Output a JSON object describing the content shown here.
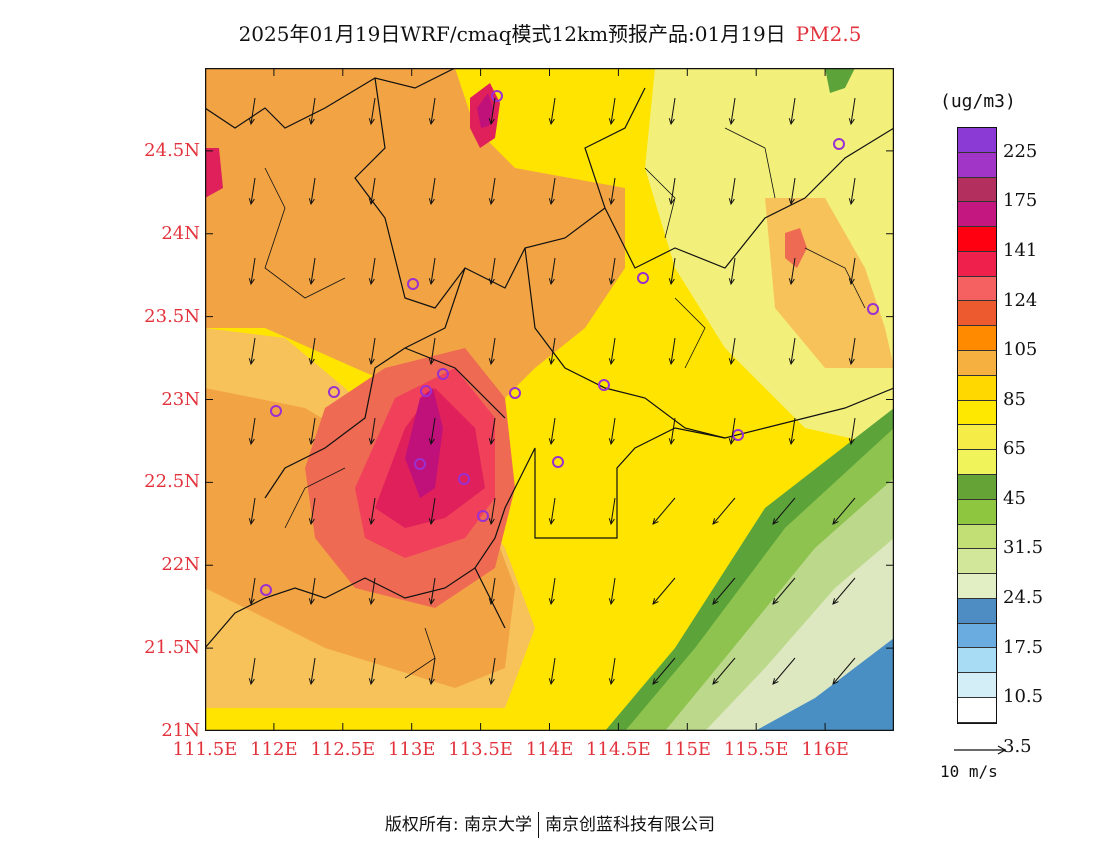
{
  "header": {
    "title": "2025年01月19日WRF/cmaq模式12km预报产品:01月19日",
    "pollutant": "PM2.5"
  },
  "map": {
    "lat_range": [
      21.0,
      25.0
    ],
    "lon_range": [
      111.5,
      116.5
    ],
    "lat_ticks": [
      "24.5N",
      "24N",
      "23.5N",
      "23N",
      "22.5N",
      "22N",
      "21.5N",
      "21N"
    ],
    "lat_values": [
      24.5,
      24.0,
      23.5,
      23.0,
      22.5,
      22.0,
      21.5,
      21.0
    ],
    "lon_ticks": [
      "111.5E",
      "112E",
      "112.5E",
      "113E",
      "113.5E",
      "114E",
      "114.5E",
      "115E",
      "115.5E",
      "116E"
    ],
    "lon_values": [
      111.5,
      112.0,
      112.5,
      113.0,
      113.5,
      114.0,
      114.5,
      115.0,
      115.5,
      116.0
    ],
    "field_colors": {
      "ocean_blue": "#4a8fc4",
      "pale_green": "#dde8c0",
      "light_green": "#bcd88a",
      "mid_green": "#8ec34f",
      "dark_green": "#5ca33a",
      "pale_yellow": "#f2f07a",
      "yellow": "#ffe400",
      "light_orange": "#f7c25a",
      "orange": "#f2a444",
      "red_orange": "#ee6a52",
      "pink_red": "#f0405a",
      "crimson": "#e0205a",
      "magenta": "#c0107a",
      "purple": "#9a40c8"
    },
    "sites_color": "#9a30d0",
    "wind_arrow_color": "#111111"
  },
  "legend": {
    "units": "(ug/m3)",
    "colors": [
      "#8c3ad6",
      "#a035c8",
      "#b3305e",
      "#c41880",
      "#ff0010",
      "#f0204c",
      "#f56060",
      "#ee5a30",
      "#ff8a00",
      "#f5b040",
      "#ffd800",
      "#ffe800",
      "#f5ec48",
      "#f0f45a",
      "#66a336",
      "#8fc63f",
      "#c2df76",
      "#d3e79b",
      "#e2efc4",
      "#4e8cc4",
      "#6aace0",
      "#a8dcf4",
      "#d4eef8",
      "#ffffff"
    ],
    "labels": [
      "225",
      "175",
      "141",
      "124",
      "105",
      "85",
      "65",
      "45",
      "31.5",
      "24.5",
      "17.5",
      "10.5",
      "3.5"
    ]
  },
  "wind_reference": {
    "label": "10 m/s"
  },
  "footer": {
    "copyright_prefix": "版权所有: 南京大学",
    "copyright_suffix": "南京创蓝科技有限公司"
  }
}
